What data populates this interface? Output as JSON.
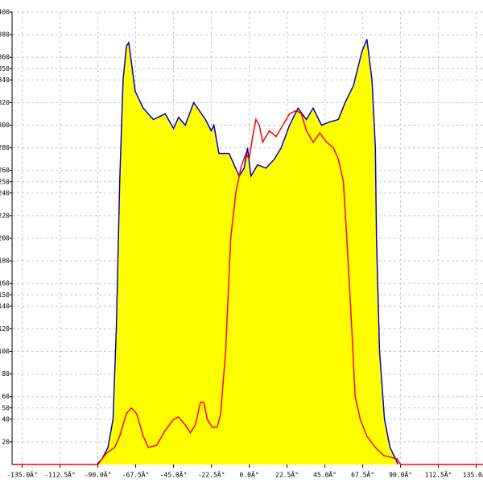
{
  "chart_data": {
    "type": "area",
    "xlim": [
      -141,
      139
    ],
    "ylim": [
      0,
      400
    ],
    "grid": true,
    "xticks": [
      {
        "value": -135,
        "label": "-135.0Â°"
      },
      {
        "value": -112.5,
        "label": "-112.5Â°"
      },
      {
        "value": -90,
        "label": "-90.0Â°"
      },
      {
        "value": -67.5,
        "label": "-67.5Â°"
      },
      {
        "value": -45,
        "label": "-45.0Â°"
      },
      {
        "value": -22.5,
        "label": "-22.5Â°"
      },
      {
        "value": 0,
        "label": "0.0Â°"
      },
      {
        "value": 22.5,
        "label": "22.5Â°"
      },
      {
        "value": 45,
        "label": "45.0Â°"
      },
      {
        "value": 67.5,
        "label": "67.5Â°"
      },
      {
        "value": 90,
        "label": "90.0Â°"
      },
      {
        "value": 112.5,
        "label": "112.5Â°"
      },
      {
        "value": 135,
        "label": "135.0Â°"
      }
    ],
    "yticks": [
      20,
      40,
      50,
      60,
      80,
      100,
      120,
      140,
      150,
      160,
      180,
      200,
      220,
      240,
      250,
      260,
      280,
      300,
      320,
      340,
      350,
      360,
      380,
      400
    ],
    "series": [
      {
        "color": "#0000cc",
        "fill": "#ffff00",
        "x": [
          -90.6,
          -87.5,
          -84,
          -81,
          -79,
          -77,
          -75,
          -73,
          -71.6,
          -67.8,
          -63,
          -57,
          -50,
          -45,
          -42,
          -38,
          -33,
          -26,
          -22.6,
          -21,
          -18,
          -12,
          -6,
          -3,
          -1,
          1,
          5,
          10,
          15,
          19,
          24,
          29,
          34,
          38,
          43,
          48,
          53,
          57,
          62,
          67,
          70,
          73,
          75,
          75.7,
          77.5,
          80.4,
          83.7,
          87,
          88.5
        ],
        "values": [
          0,
          5,
          15,
          40,
          120,
          250,
          340,
          370,
          373,
          330,
          315,
          305,
          310,
          297,
          307,
          300,
          320,
          305,
          295,
          300,
          275,
          275,
          255,
          262,
          280,
          255,
          265,
          262,
          270,
          280,
          300,
          315,
          305,
          315,
          300,
          303,
          305,
          320,
          335,
          365,
          376,
          340,
          280,
          200,
          100,
          40,
          15,
          5,
          0
        ]
      },
      {
        "color": "#ff0000",
        "x": [
          -141,
          -90,
          -85,
          -80,
          -77,
          -73,
          -70,
          -67,
          -63,
          -60,
          -55,
          -50,
          -45,
          -42,
          -38,
          -35,
          -32,
          -29,
          -27,
          -25,
          -22,
          -19,
          -17,
          -14,
          -11,
          -8,
          -5,
          -2,
          0,
          2,
          4,
          6,
          8,
          12,
          16,
          20,
          24,
          28,
          31,
          34,
          38,
          42,
          46,
          50,
          53,
          56,
          58,
          61,
          63,
          66,
          70,
          75,
          80,
          88,
          90,
          139
        ],
        "values": [
          0,
          0,
          10,
          15,
          25,
          45,
          50,
          45,
          25,
          15,
          17,
          30,
          40,
          42,
          35,
          28,
          35,
          55,
          55,
          40,
          33,
          33,
          45,
          100,
          200,
          240,
          262,
          275,
          270,
          290,
          305,
          300,
          285,
          295,
          290,
          300,
          310,
          313,
          310,
          295,
          285,
          293,
          285,
          280,
          270,
          250,
          200,
          120,
          60,
          40,
          25,
          15,
          8,
          5,
          0,
          0
        ]
      }
    ]
  }
}
